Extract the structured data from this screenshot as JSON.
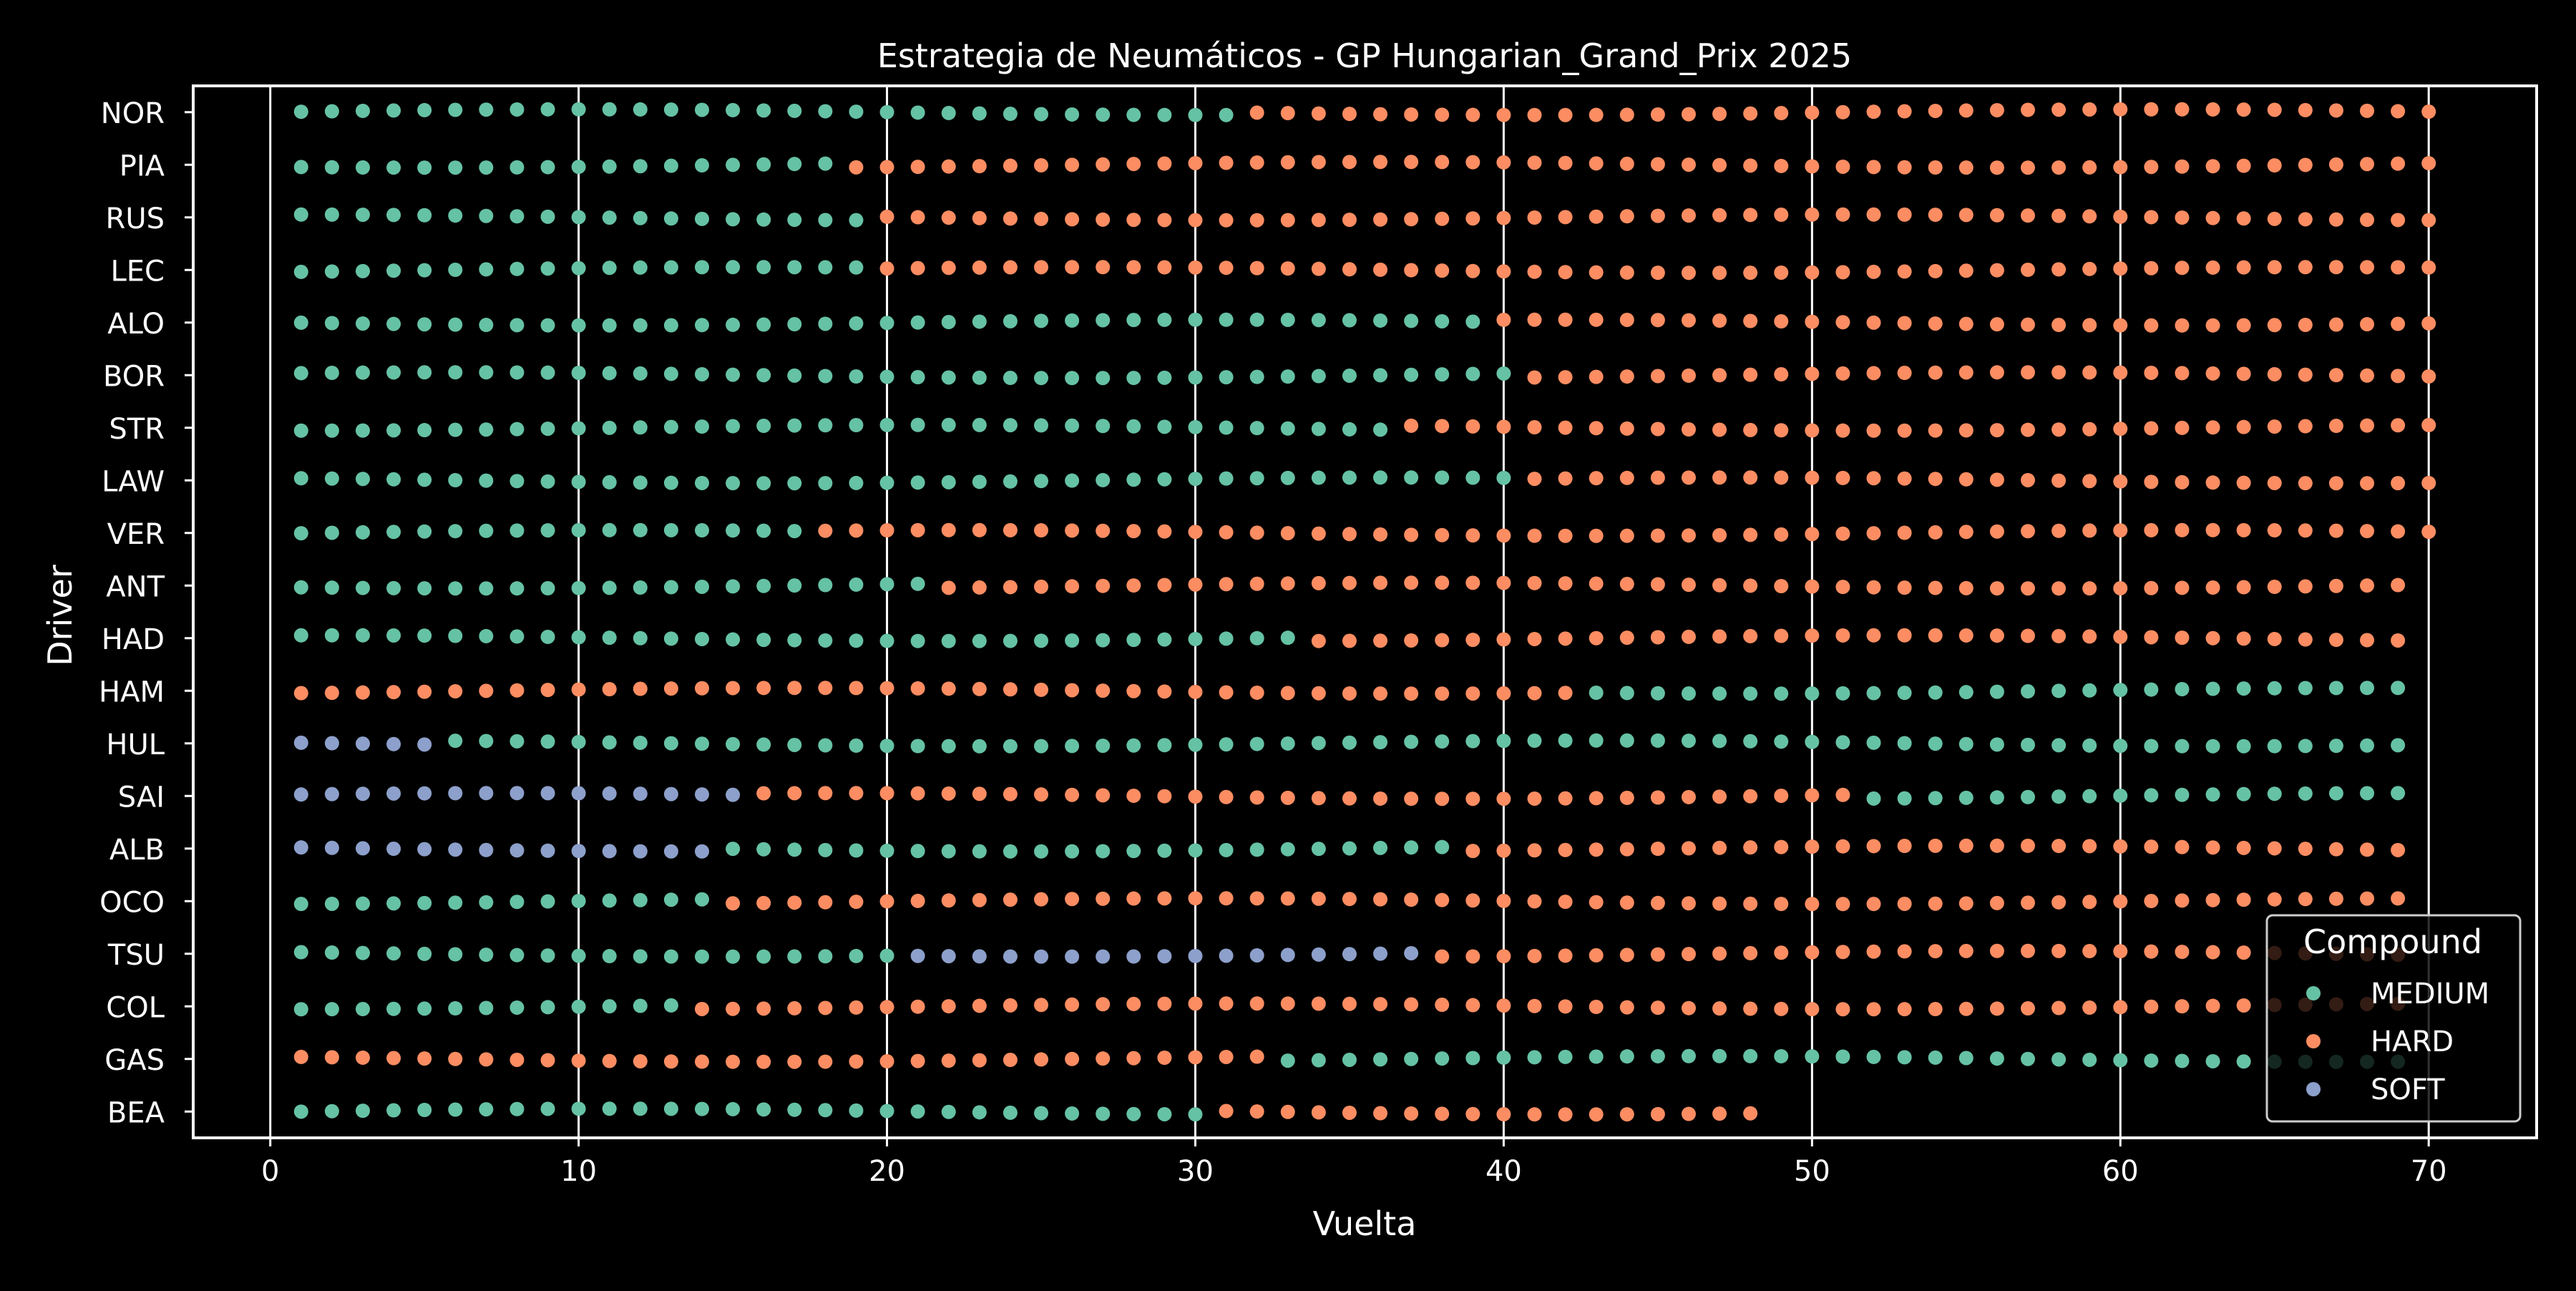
{
  "chart_data": {
    "type": "scatter",
    "title": "Estrategia de Neumáticos - GP Hungarian_Grand_Prix 2025",
    "xlabel": "Vuelta",
    "ylabel": "Driver",
    "xlim": [
      -2.5,
      73.5
    ],
    "xticks": [
      0,
      10,
      20,
      30,
      40,
      50,
      60,
      70
    ],
    "grid": "x-vertical",
    "legend": {
      "title": "Compound",
      "placement": "lower-right",
      "entries": [
        "MEDIUM",
        "HARD",
        "SOFT"
      ]
    },
    "compound_colors": {
      "MEDIUM": "#66c2a5",
      "HARD": "#fc8d62",
      "SOFT": "#8da0cb"
    },
    "drivers": [
      "NOR",
      "PIA",
      "RUS",
      "LEC",
      "ALO",
      "BOR",
      "STR",
      "LAW",
      "VER",
      "ANT",
      "HAD",
      "HAM",
      "HUL",
      "SAI",
      "ALB",
      "OCO",
      "TSU",
      "COL",
      "GAS",
      "BEA"
    ],
    "stints": [
      {
        "driver": "NOR",
        "compound": "MEDIUM",
        "start_lap": 1,
        "end_lap": 31
      },
      {
        "driver": "NOR",
        "compound": "HARD",
        "start_lap": 32,
        "end_lap": 70
      },
      {
        "driver": "PIA",
        "compound": "MEDIUM",
        "start_lap": 1,
        "end_lap": 18
      },
      {
        "driver": "PIA",
        "compound": "HARD",
        "start_lap": 19,
        "end_lap": 70
      },
      {
        "driver": "RUS",
        "compound": "MEDIUM",
        "start_lap": 1,
        "end_lap": 19
      },
      {
        "driver": "RUS",
        "compound": "HARD",
        "start_lap": 20,
        "end_lap": 70
      },
      {
        "driver": "LEC",
        "compound": "MEDIUM",
        "start_lap": 1,
        "end_lap": 19
      },
      {
        "driver": "LEC",
        "compound": "HARD",
        "start_lap": 20,
        "end_lap": 70
      },
      {
        "driver": "ALO",
        "compound": "MEDIUM",
        "start_lap": 1,
        "end_lap": 39
      },
      {
        "driver": "ALO",
        "compound": "HARD",
        "start_lap": 40,
        "end_lap": 70
      },
      {
        "driver": "BOR",
        "compound": "MEDIUM",
        "start_lap": 1,
        "end_lap": 40
      },
      {
        "driver": "BOR",
        "compound": "HARD",
        "start_lap": 41,
        "end_lap": 70
      },
      {
        "driver": "STR",
        "compound": "MEDIUM",
        "start_lap": 1,
        "end_lap": 36
      },
      {
        "driver": "STR",
        "compound": "HARD",
        "start_lap": 37,
        "end_lap": 70
      },
      {
        "driver": "LAW",
        "compound": "MEDIUM",
        "start_lap": 1,
        "end_lap": 40
      },
      {
        "driver": "LAW",
        "compound": "HARD",
        "start_lap": 41,
        "end_lap": 70
      },
      {
        "driver": "VER",
        "compound": "MEDIUM",
        "start_lap": 1,
        "end_lap": 17
      },
      {
        "driver": "VER",
        "compound": "HARD",
        "start_lap": 18,
        "end_lap": 70
      },
      {
        "driver": "ANT",
        "compound": "MEDIUM",
        "start_lap": 1,
        "end_lap": 21
      },
      {
        "driver": "ANT",
        "compound": "HARD",
        "start_lap": 22,
        "end_lap": 69
      },
      {
        "driver": "HAD",
        "compound": "MEDIUM",
        "start_lap": 1,
        "end_lap": 33
      },
      {
        "driver": "HAD",
        "compound": "HARD",
        "start_lap": 34,
        "end_lap": 69
      },
      {
        "driver": "HAM",
        "compound": "HARD",
        "start_lap": 1,
        "end_lap": 42
      },
      {
        "driver": "HAM",
        "compound": "MEDIUM",
        "start_lap": 43,
        "end_lap": 69
      },
      {
        "driver": "HUL",
        "compound": "SOFT",
        "start_lap": 1,
        "end_lap": 5
      },
      {
        "driver": "HUL",
        "compound": "MEDIUM",
        "start_lap": 6,
        "end_lap": 69
      },
      {
        "driver": "SAI",
        "compound": "SOFT",
        "start_lap": 1,
        "end_lap": 15
      },
      {
        "driver": "SAI",
        "compound": "HARD",
        "start_lap": 16,
        "end_lap": 51
      },
      {
        "driver": "SAI",
        "compound": "MEDIUM",
        "start_lap": 52,
        "end_lap": 69
      },
      {
        "driver": "ALB",
        "compound": "SOFT",
        "start_lap": 1,
        "end_lap": 14
      },
      {
        "driver": "ALB",
        "compound": "MEDIUM",
        "start_lap": 15,
        "end_lap": 38
      },
      {
        "driver": "ALB",
        "compound": "HARD",
        "start_lap": 39,
        "end_lap": 69
      },
      {
        "driver": "OCO",
        "compound": "MEDIUM",
        "start_lap": 1,
        "end_lap": 14
      },
      {
        "driver": "OCO",
        "compound": "HARD",
        "start_lap": 15,
        "end_lap": 69
      },
      {
        "driver": "TSU",
        "compound": "MEDIUM",
        "start_lap": 1,
        "end_lap": 20
      },
      {
        "driver": "TSU",
        "compound": "SOFT",
        "start_lap": 21,
        "end_lap": 37
      },
      {
        "driver": "TSU",
        "compound": "HARD",
        "start_lap": 38,
        "end_lap": 69
      },
      {
        "driver": "COL",
        "compound": "MEDIUM",
        "start_lap": 1,
        "end_lap": 13
      },
      {
        "driver": "COL",
        "compound": "HARD",
        "start_lap": 14,
        "end_lap": 69
      },
      {
        "driver": "GAS",
        "compound": "HARD",
        "start_lap": 1,
        "end_lap": 32
      },
      {
        "driver": "GAS",
        "compound": "MEDIUM",
        "start_lap": 33,
        "end_lap": 69
      },
      {
        "driver": "BEA",
        "compound": "MEDIUM",
        "start_lap": 1,
        "end_lap": 30
      },
      {
        "driver": "BEA",
        "compound": "HARD",
        "start_lap": 31,
        "end_lap": 48
      }
    ]
  }
}
